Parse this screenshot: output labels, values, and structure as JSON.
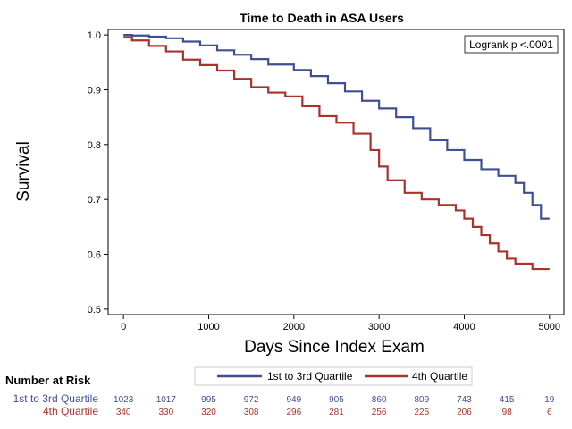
{
  "chart_data": {
    "type": "line",
    "title": "Time to Death in ASA Users",
    "xlabel": "Days Since Index Exam",
    "ylabel": "Survival",
    "xlim": [
      -180,
      5170
    ],
    "ylim": [
      0.49,
      1.01
    ],
    "x_ticks": [
      0,
      1000,
      2000,
      3000,
      4000,
      5000
    ],
    "y_ticks": [
      0.5,
      0.6,
      0.7,
      0.8,
      0.9,
      1.0
    ],
    "x_tick_labels": [
      "0",
      "1000",
      "2000",
      "3000",
      "4000",
      "5000"
    ],
    "y_tick_labels": [
      "0.5",
      "0.6",
      "0.7",
      "0.8",
      "0.9",
      "1.0"
    ],
    "annotation": "Logrank p <.0001",
    "grid": false,
    "legend_position": "bottom",
    "series": [
      {
        "name": "1st to 3rd Quartile",
        "color": "#3f4f95",
        "step": true,
        "x": [
          0,
          100,
          300,
          500,
          700,
          900,
          1100,
          1300,
          1500,
          1700,
          2000,
          2200,
          2400,
          2600,
          2800,
          3000,
          3200,
          3400,
          3600,
          3800,
          4000,
          4200,
          4400,
          4600,
          4700,
          4800,
          4900,
          5000
        ],
        "y": [
          1.0,
          0.999,
          0.997,
          0.994,
          0.988,
          0.981,
          0.972,
          0.964,
          0.956,
          0.946,
          0.936,
          0.925,
          0.912,
          0.897,
          0.88,
          0.866,
          0.85,
          0.83,
          0.808,
          0.79,
          0.772,
          0.755,
          0.743,
          0.73,
          0.712,
          0.69,
          0.665,
          0.665
        ]
      },
      {
        "name": "4th Quartile",
        "color": "#a8332d",
        "step": true,
        "x": [
          0,
          100,
          300,
          500,
          700,
          900,
          1100,
          1300,
          1500,
          1700,
          1900,
          2100,
          2300,
          2500,
          2700,
          2900,
          3000,
          3100,
          3300,
          3500,
          3700,
          3900,
          4000,
          4100,
          4200,
          4300,
          4400,
          4500,
          4600,
          4800,
          5000
        ],
        "y": [
          0.996,
          0.99,
          0.98,
          0.97,
          0.955,
          0.945,
          0.935,
          0.92,
          0.905,
          0.895,
          0.888,
          0.87,
          0.852,
          0.84,
          0.82,
          0.79,
          0.76,
          0.735,
          0.712,
          0.7,
          0.69,
          0.68,
          0.665,
          0.65,
          0.635,
          0.62,
          0.605,
          0.592,
          0.583,
          0.573,
          0.573
        ]
      }
    ],
    "number_at_risk": {
      "heading": "Number at Risk",
      "x": [
        0,
        500,
        1000,
        1500,
        2000,
        2500,
        3000,
        3500,
        4000,
        4500,
        5000
      ],
      "rows": [
        {
          "label": "1st to 3rd Quartile",
          "color": "#3f4f95",
          "values": [
            "1023",
            "1017",
            "995",
            "972",
            "949",
            "905",
            "860",
            "809",
            "743",
            "415",
            "19"
          ]
        },
        {
          "label": "4th Quartile",
          "color": "#a8332d",
          "values": [
            "340",
            "330",
            "320",
            "308",
            "296",
            "281",
            "256",
            "225",
            "206",
            "98",
            "6"
          ]
        }
      ]
    }
  }
}
